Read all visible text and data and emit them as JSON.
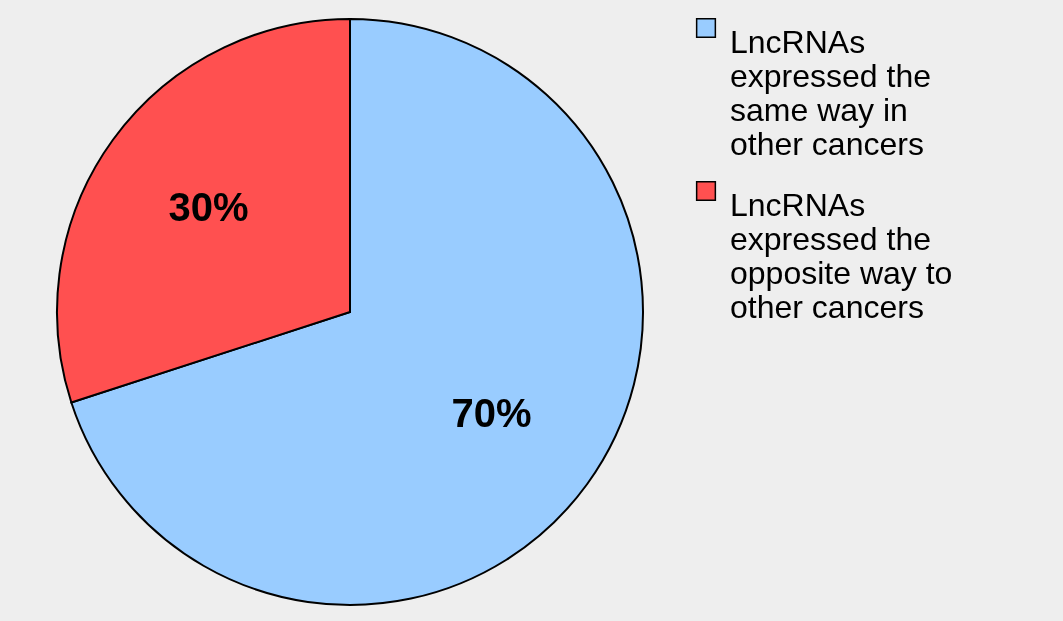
{
  "chart_data": {
    "type": "pie",
    "categories": [
      "LncRNAs expressed the same way in other cancers",
      "LncRNAs expressed the opposite way to other cancers"
    ],
    "values": [
      70,
      30
    ],
    "colors": [
      "#99ccff",
      "#ff5050"
    ],
    "value_labels": [
      "70%",
      "30%"
    ],
    "legend": "right"
  }
}
